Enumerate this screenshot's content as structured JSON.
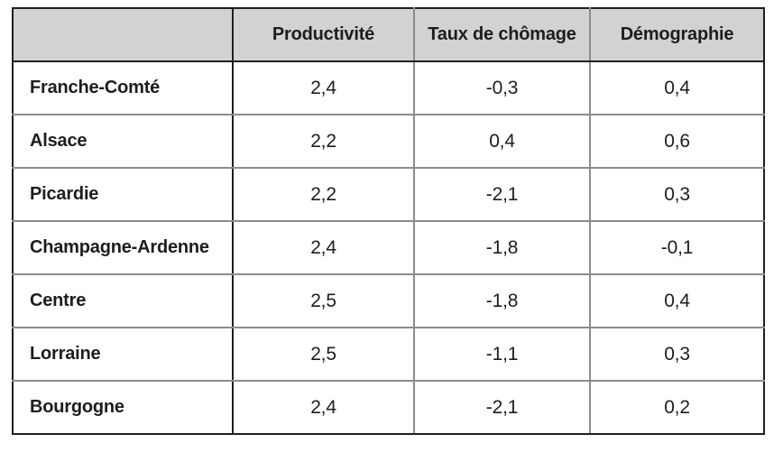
{
  "table": {
    "header": {
      "col0": "",
      "col1": "Productivité",
      "col2": "Taux de chômage",
      "col3": "Démographie"
    },
    "rows": [
      {
        "label": "Franche-Comté",
        "productivite": "2,4",
        "chomage": "-0,3",
        "demographie": "0,4"
      },
      {
        "label": "Alsace",
        "productivite": "2,2",
        "chomage": "0,4",
        "demographie": "0,6"
      },
      {
        "label": "Picardie",
        "productivite": "2,2",
        "chomage": "-2,1",
        "demographie": "0,3"
      },
      {
        "label": "Champagne-Ardenne",
        "productivite": "2,4",
        "chomage": "-1,8",
        "demographie": "-0,1"
      },
      {
        "label": "Centre",
        "productivite": "2,5",
        "chomage": "-1,8",
        "demographie": "0,4"
      },
      {
        "label": "Lorraine",
        "productivite": "2,5",
        "chomage": "-1,1",
        "demographie": "0,3"
      },
      {
        "label": "Bourgogne",
        "productivite": "2,4",
        "chomage": "-2,1",
        "demographie": "0,2"
      }
    ]
  },
  "colors": {
    "header_bg": "#d2d2d4",
    "text": "#1d1d1b",
    "border_dark": "#1f1f1f",
    "border_gray": "#8c8c8c",
    "page_bg": "#ffffff"
  },
  "chart_data": {
    "type": "table",
    "title": "",
    "columns": [
      "",
      "Productivité",
      "Taux de chômage",
      "Démographie"
    ],
    "rows": [
      [
        "Franche-Comté",
        2.4,
        -0.3,
        0.4
      ],
      [
        "Alsace",
        2.2,
        0.4,
        0.6
      ],
      [
        "Picardie",
        2.2,
        -2.1,
        0.3
      ],
      [
        "Champagne-Ardenne",
        2.4,
        -1.8,
        -0.1
      ],
      [
        "Centre",
        2.5,
        -1.8,
        0.4
      ],
      [
        "Lorraine",
        2.5,
        -1.1,
        0.3
      ],
      [
        "Bourgogne",
        2.4,
        -2.1,
        0.2
      ]
    ],
    "number_format": "French decimal comma",
    "layout": {
      "header_fill": "#d2d2d4",
      "grid": true
    }
  }
}
